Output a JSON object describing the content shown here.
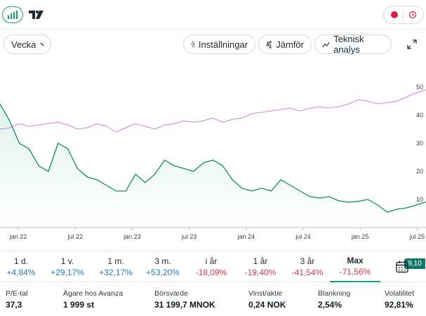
{
  "toolbar": {
    "period_label": "Vecka",
    "settings_label": "Inställningar",
    "compare_label": "Jämför",
    "technical_label": "Teknisk analys"
  },
  "brand_color": "#1aa071",
  "chart_data": {
    "type": "line",
    "x_ticks": [
      "jan 22",
      "jul 22",
      "jan 23",
      "jul 23",
      "jan 24",
      "jul 24",
      "jan 25",
      "jul 25"
    ],
    "y_ticks": [
      10,
      20,
      30,
      40,
      50
    ],
    "ylim": [
      4,
      52
    ],
    "series": [
      {
        "color": "#0f8a6e",
        "values": [
          44,
          38,
          30,
          28,
          22,
          20,
          30,
          28,
          21,
          18,
          17,
          15,
          13,
          13,
          19,
          16,
          19,
          24,
          22,
          21,
          20,
          23,
          24,
          22,
          17,
          14,
          13,
          14,
          13,
          17,
          15,
          13,
          11,
          10.5,
          11,
          9.5,
          9,
          9.3,
          10,
          8,
          5.5,
          6.5,
          7,
          8,
          9.1
        ]
      },
      {
        "color": "#d37ee0",
        "values": [
          35,
          35.5,
          37,
          36,
          36.5,
          37,
          37.5,
          36.5,
          35,
          35.5,
          37,
          36,
          34,
          35.5,
          37,
          36,
          35,
          36.5,
          37,
          38,
          37.5,
          38,
          39,
          37.5,
          38.5,
          39,
          40.5,
          41,
          41.5,
          42,
          42.5,
          41.5,
          42.5,
          43,
          42.5,
          43,
          44,
          45.5,
          45,
          44,
          44.5,
          45,
          46.5,
          48,
          49
        ]
      }
    ],
    "last_value_label": "9,10"
  },
  "periods": [
    {
      "label": "1 d.",
      "value": "+4,84%",
      "sign": "pos"
    },
    {
      "label": "1 v.",
      "value": "+29,17%",
      "sign": "pos"
    },
    {
      "label": "1 m.",
      "value": "+32,17%",
      "sign": "pos"
    },
    {
      "label": "3 m.",
      "value": "+53,20%",
      "sign": "pos"
    },
    {
      "label": "i år",
      "value": "-18,09%",
      "sign": "neg"
    },
    {
      "label": "1 år",
      "value": "-19,40%",
      "sign": "neg"
    },
    {
      "label": "3 år",
      "value": "-41,54%",
      "sign": "neg"
    },
    {
      "label": "Max",
      "value": "-71,56%",
      "sign": "neg"
    }
  ],
  "stats": [
    {
      "label": "P/E-tal",
      "value": "37,3"
    },
    {
      "label": "Ägare hos Avanza",
      "value": "1 999 st"
    },
    {
      "label": "Börsvärde",
      "value": "31 199,7 MNOK"
    },
    {
      "label": "Vinst/aktie",
      "value": "0,24 NOK"
    },
    {
      "label": "Blankning",
      "value": "2,54%"
    },
    {
      "label": "Volatilitet",
      "value": "92,81%"
    }
  ]
}
